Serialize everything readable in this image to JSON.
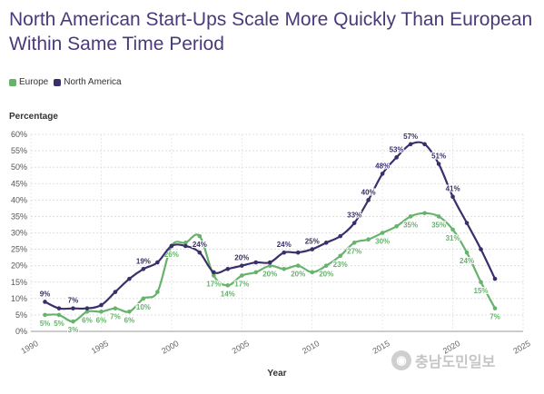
{
  "title": "North American Start-Ups Scale More Quickly Than European Within Same Time Period",
  "legend": [
    {
      "label": "Europe",
      "color": "#66b36c"
    },
    {
      "label": "North America",
      "color": "#3b2f6b"
    }
  ],
  "watermark": "충남도민일보",
  "chart_data": {
    "type": "line",
    "ylabel": "Percentage",
    "xlabel": "Year",
    "xlim": [
      1990,
      2025
    ],
    "ylim": [
      0,
      60
    ],
    "xticks": [
      1990,
      1995,
      2000,
      2005,
      2010,
      2015,
      2020,
      2025
    ],
    "yticks": [
      0,
      5,
      10,
      15,
      20,
      25,
      30,
      35,
      40,
      45,
      50,
      55,
      60
    ],
    "grid": true,
    "legend_position": "top-left",
    "series": [
      {
        "name": "Europe",
        "color": "#66b36c",
        "x": [
          1991,
          1992,
          1993,
          1994,
          1995,
          1996,
          1997,
          1998,
          1999,
          2000,
          2001,
          2002,
          2003,
          2004,
          2005,
          2006,
          2007,
          2008,
          2009,
          2010,
          2011,
          2012,
          2013,
          2014,
          2015,
          2016,
          2017,
          2018,
          2019,
          2020,
          2021,
          2022,
          2023
        ],
        "values": [
          5,
          5,
          3,
          6,
          6,
          7,
          6,
          10,
          12,
          26,
          27,
          29,
          17,
          14,
          17,
          18,
          20,
          19,
          20,
          18,
          20,
          23,
          27,
          28,
          30,
          32,
          35,
          36,
          35,
          31,
          24,
          15,
          7
        ],
        "labels": [
          {
            "x": 1991,
            "text": "5%"
          },
          {
            "x": 1992,
            "text": "5%"
          },
          {
            "x": 1993,
            "text": "3%"
          },
          {
            "x": 1994,
            "text": "6%"
          },
          {
            "x": 1995,
            "text": "6%"
          },
          {
            "x": 1996,
            "text": "7%"
          },
          {
            "x": 1997,
            "text": "6%"
          },
          {
            "x": 1998,
            "text": "10%"
          },
          {
            "x": 2000,
            "text": "26%"
          },
          {
            "x": 2002,
            "text": "29%"
          },
          {
            "x": 2003,
            "text": "17%"
          },
          {
            "x": 2004,
            "text": "14%"
          },
          {
            "x": 2005,
            "text": "17%"
          },
          {
            "x": 2007,
            "text": "20%"
          },
          {
            "x": 2009,
            "text": "20%"
          },
          {
            "x": 2011,
            "text": "20%"
          },
          {
            "x": 2012,
            "text": "23%"
          },
          {
            "x": 2013,
            "text": "27%"
          },
          {
            "x": 2015,
            "text": "30%"
          },
          {
            "x": 2017,
            "text": "35%"
          },
          {
            "x": 2019,
            "text": "35%"
          },
          {
            "x": 2020,
            "text": "31%"
          },
          {
            "x": 2021,
            "text": "24%"
          },
          {
            "x": 2022,
            "text": "15%"
          },
          {
            "x": 2023,
            "text": "7%"
          }
        ]
      },
      {
        "name": "North America",
        "color": "#3b2f6b",
        "x": [
          1991,
          1992,
          1993,
          1994,
          1995,
          1996,
          1997,
          1998,
          1999,
          2000,
          2001,
          2002,
          2003,
          2004,
          2005,
          2006,
          2007,
          2008,
          2009,
          2010,
          2011,
          2012,
          2013,
          2014,
          2015,
          2016,
          2017,
          2018,
          2019,
          2020,
          2021,
          2022,
          2023
        ],
        "values": [
          9,
          7,
          7,
          7,
          8,
          12,
          16,
          19,
          21,
          26,
          26,
          24,
          18,
          19,
          20,
          21,
          21,
          24,
          24,
          25,
          27,
          29,
          33,
          40,
          48,
          53,
          57,
          57,
          51,
          41,
          33,
          25,
          16
        ],
        "labels": [
          {
            "x": 1991,
            "text": "9%"
          },
          {
            "x": 1993,
            "text": "7%"
          },
          {
            "x": 1998,
            "text": "19%"
          },
          {
            "x": 2002,
            "text": "24%"
          },
          {
            "x": 2005,
            "text": "20%"
          },
          {
            "x": 2008,
            "text": "24%"
          },
          {
            "x": 2010,
            "text": "25%"
          },
          {
            "x": 2013,
            "text": "33%"
          },
          {
            "x": 2014,
            "text": "40%"
          },
          {
            "x": 2015,
            "text": "48%"
          },
          {
            "x": 2016,
            "text": "53%"
          },
          {
            "x": 2017,
            "text": "57%"
          },
          {
            "x": 2019,
            "text": "51%"
          },
          {
            "x": 2020,
            "text": "41%"
          }
        ]
      }
    ]
  }
}
